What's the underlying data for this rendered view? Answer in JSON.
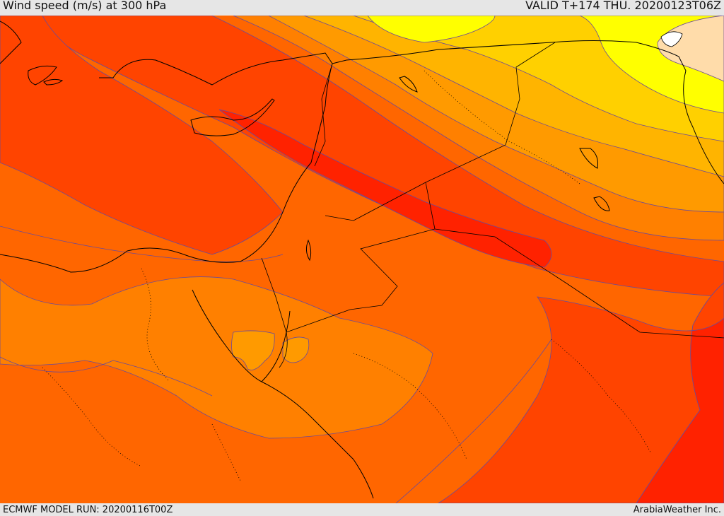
{
  "header": {
    "title": "Wind speed (m/s) at 300 hPa",
    "valid": "VALID T+174 THU. 20200123T06Z"
  },
  "footer": {
    "model_run": "ECMWF MODEL RUN: 20200116T00Z",
    "credit": "ArabiaWeather Inc."
  },
  "map": {
    "field": "wind-speed",
    "level": "300 hPa",
    "colors": {
      "band_darkred": "#ff2200",
      "band_red": "#ff4400",
      "band_redorange": "#ff6600",
      "band_orange": "#ff8000",
      "band_lightorange": "#ff9a00",
      "band_amber": "#ffb400",
      "band_gold": "#ffd000",
      "band_yellow": "#ffff00",
      "band_peach": "#ffdcaa",
      "coastline": "#000000",
      "contour": "#6a4a9a"
    }
  }
}
